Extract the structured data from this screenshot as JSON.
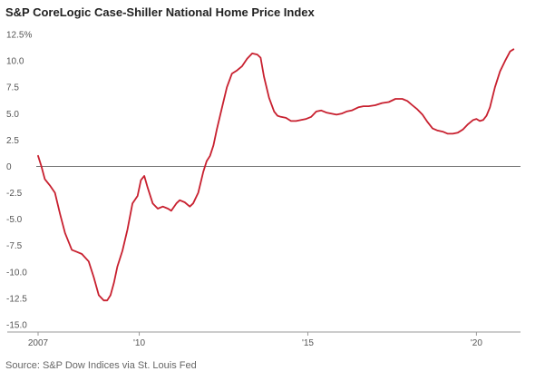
{
  "title": "S&P CoreLogic Case-Shiller National Home Price Index",
  "source": "Source: S&P Dow Indices via St. Louis Fed",
  "chart_data": {
    "type": "line",
    "title": "S&P CoreLogic Case-Shiller National Home Price Index",
    "xlabel": "",
    "ylabel": "",
    "ylim": [
      -15,
      12.5
    ],
    "xlim": [
      2007.0,
      2021.2
    ],
    "y_ticks": [
      12.5,
      10.0,
      7.5,
      5.0,
      2.5,
      0,
      -2.5,
      -5.0,
      -7.5,
      -10.0,
      -12.5,
      -15.0
    ],
    "y_tick_labels": [
      "12.5%",
      "10.0",
      "7.5",
      "5.0",
      "2.5",
      "0",
      "-2.5",
      "-5.0",
      "-7.5",
      "-10.0",
      "-12.5",
      "-15.0"
    ],
    "x_ticks": [
      2007,
      2010,
      2015,
      2020
    ],
    "x_tick_labels": [
      "2007",
      "'10",
      "'15",
      "'20"
    ],
    "grid": false,
    "zero_line": true,
    "line_color": "#c8202f",
    "series": [
      {
        "x": [
          2007.0,
          2007.1,
          2007.2,
          2007.35,
          2007.5,
          2007.65,
          2007.8,
          2008.0,
          2008.15,
          2008.3,
          2008.5,
          2008.65,
          2008.8,
          2008.95,
          2009.05,
          2009.15,
          2009.25,
          2009.35,
          2009.5,
          2009.65,
          2009.8,
          2009.95,
          2010.05,
          2010.15,
          2010.25,
          2010.4,
          2010.55,
          2010.7,
          2010.85,
          2010.95,
          2011.1,
          2011.2,
          2011.35,
          2011.5,
          2011.6,
          2011.75,
          2011.9,
          2012.0,
          2012.1,
          2012.2,
          2012.3,
          2012.45,
          2012.6,
          2012.75,
          2012.9,
          2013.05,
          2013.2,
          2013.35,
          2013.5,
          2013.6,
          2013.7,
          2013.85,
          2014.0,
          2014.1,
          2014.2,
          2014.35,
          2014.5,
          2014.65,
          2014.8,
          2014.95,
          2015.1,
          2015.25,
          2015.4,
          2015.55,
          2015.7,
          2015.85,
          2016.0,
          2016.15,
          2016.3,
          2016.5,
          2016.65,
          2016.8,
          2017.0,
          2017.2,
          2017.4,
          2017.6,
          2017.8,
          2017.95,
          2018.1,
          2018.25,
          2018.4,
          2018.55,
          2018.7,
          2018.85,
          2019.0,
          2019.15,
          2019.3,
          2019.45,
          2019.6,
          2019.75,
          2019.9,
          2020.0,
          2020.1,
          2020.2,
          2020.3,
          2020.4,
          2020.55,
          2020.7,
          2020.85,
          2021.0,
          2021.1
        ],
        "values": [
          1.0,
          0.0,
          -1.2,
          -1.8,
          -2.5,
          -4.5,
          -6.3,
          -7.9,
          -8.1,
          -8.3,
          -9.0,
          -10.5,
          -12.2,
          -12.7,
          -12.7,
          -12.2,
          -11.0,
          -9.5,
          -8.0,
          -6.0,
          -3.5,
          -2.8,
          -1.3,
          -0.9,
          -2.0,
          -3.5,
          -4.0,
          -3.8,
          -4.0,
          -4.2,
          -3.5,
          -3.2,
          -3.4,
          -3.8,
          -3.5,
          -2.5,
          -0.5,
          0.5,
          1.0,
          2.0,
          3.5,
          5.5,
          7.5,
          8.8,
          9.1,
          9.5,
          10.2,
          10.7,
          10.6,
          10.3,
          8.5,
          6.5,
          5.2,
          4.8,
          4.7,
          4.6,
          4.3,
          4.3,
          4.4,
          4.5,
          4.7,
          5.2,
          5.3,
          5.1,
          5.0,
          4.9,
          5.0,
          5.2,
          5.3,
          5.6,
          5.7,
          5.7,
          5.8,
          6.0,
          6.1,
          6.4,
          6.4,
          6.2,
          5.8,
          5.4,
          4.9,
          4.2,
          3.6,
          3.4,
          3.3,
          3.1,
          3.1,
          3.2,
          3.5,
          4.0,
          4.4,
          4.5,
          4.3,
          4.4,
          4.8,
          5.6,
          7.5,
          9.0,
          10.0,
          10.9,
          11.1
        ]
      }
    ]
  }
}
